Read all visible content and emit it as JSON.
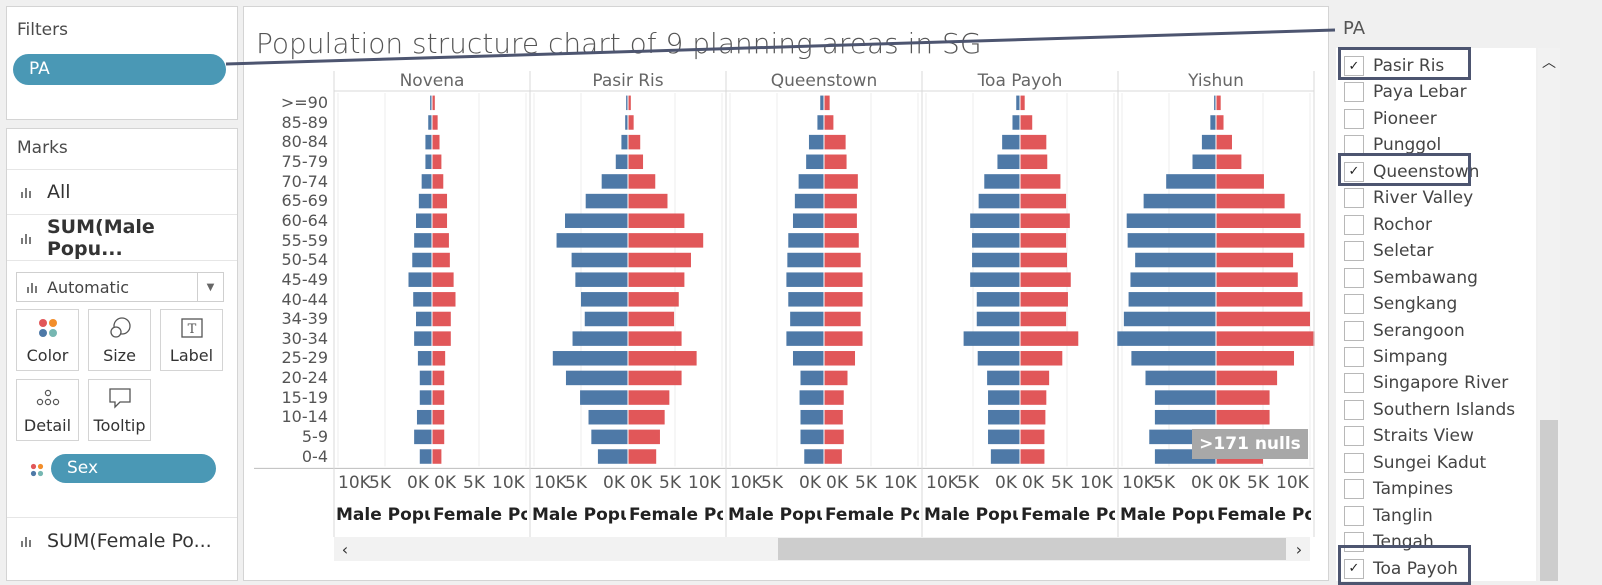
{
  "filters": {
    "title": "Filters",
    "pill": "PA"
  },
  "marks": {
    "title": "Marks",
    "rows": [
      "All",
      "SUM(Male Popu...",
      "SUM(Female Po..."
    ],
    "mark_type": "Automatic",
    "buttons": [
      "Color",
      "Size",
      "Label",
      "Detail",
      "Tooltip"
    ],
    "sex_pill": "Sex"
  },
  "viz": {
    "title": "Population structure chart of 9 planning areas in SG",
    "nulls_indicator": ">171 nulls"
  },
  "chart_data": {
    "type": "bar",
    "title": "Population structure chart of 9 planning areas in SG",
    "panes": [
      "Novena",
      "Pasir Ris",
      "Queenstown",
      "Toa Payoh",
      "Yishun"
    ],
    "categories": [
      ">=90",
      "85-89",
      "80-84",
      "75-79",
      "70-74",
      "65-69",
      "60-64",
      "55-59",
      "50-54",
      "45-49",
      "40-44",
      "34-39",
      "30-34",
      "25-29",
      "20-24",
      "15-19",
      "10-14",
      "5-9",
      "0-4"
    ],
    "axis_ticks": [
      "10K",
      "5K",
      "0K",
      "0K",
      "5K",
      "10K"
    ],
    "male_axis_label": "Male Popu...",
    "female_axis_label": "Female Po...",
    "xlim": [
      -10000,
      10000
    ],
    "colors": {
      "male": "#4e79a7",
      "female": "#e15759"
    },
    "series": [
      {
        "name": "Male Population",
        "pane": "Novena",
        "values": [
          200,
          400,
          700,
          700,
          1100,
          1400,
          1700,
          1900,
          2100,
          2500,
          2000,
          1700,
          1900,
          1500,
          1300,
          1300,
          1600,
          1900,
          1300
        ]
      },
      {
        "name": "Female Population",
        "pane": "Novena",
        "values": [
          300,
          600,
          800,
          1000,
          1200,
          1600,
          1600,
          1800,
          1900,
          2300,
          2500,
          2000,
          2000,
          1400,
          1300,
          1300,
          1300,
          1300,
          1000
        ]
      },
      {
        "name": "Male Population",
        "pane": "Pasir Ris",
        "values": [
          200,
          300,
          700,
          1300,
          2800,
          4500,
          6700,
          7600,
          6000,
          5600,
          5000,
          4600,
          5900,
          8000,
          6600,
          5100,
          4200,
          3900,
          3200
        ]
      },
      {
        "name": "Female Population",
        "pane": "Pasir Ris",
        "values": [
          300,
          600,
          1300,
          1600,
          2900,
          4200,
          6000,
          8000,
          6700,
          6000,
          5400,
          4900,
          5700,
          7300,
          5700,
          4400,
          3900,
          3400,
          3000
        ]
      },
      {
        "name": "Male Population",
        "pane": "Queenstown",
        "values": [
          400,
          700,
          1600,
          1900,
          2700,
          3100,
          3300,
          3800,
          3900,
          4000,
          3800,
          3600,
          4000,
          3300,
          2500,
          2600,
          2500,
          2500,
          2100
        ]
      },
      {
        "name": "Female Population",
        "pane": "Queenstown",
        "values": [
          600,
          1000,
          2300,
          2400,
          3600,
          3500,
          3500,
          3700,
          3900,
          4100,
          4100,
          3900,
          4100,
          3300,
          2500,
          2100,
          2000,
          2100,
          1900
        ]
      },
      {
        "name": "Male Population",
        "pane": "Toa Payoh",
        "values": [
          400,
          800,
          1900,
          2400,
          3800,
          4400,
          5300,
          5100,
          5100,
          5300,
          4600,
          4600,
          6000,
          4500,
          3500,
          3400,
          3400,
          3400,
          3100
        ]
      },
      {
        "name": "Female Population",
        "pane": "Toa Payoh",
        "values": [
          500,
          1300,
          2800,
          2900,
          4300,
          4900,
          5300,
          4900,
          5000,
          5400,
          5100,
          4900,
          6200,
          4500,
          3100,
          2800,
          2700,
          2600,
          2600
        ]
      },
      {
        "name": "Male Population",
        "pane": "Yishun",
        "values": [
          200,
          600,
          1500,
          2500,
          5300,
          7700,
          9500,
          9400,
          8600,
          9100,
          9300,
          9800,
          10500,
          9000,
          7500,
          6500,
          6500,
          7100,
          6500
        ]
      },
      {
        "name": "Female Population",
        "pane": "Yishun",
        "values": [
          500,
          800,
          1700,
          2700,
          5100,
          7300,
          9000,
          9400,
          8200,
          8700,
          9200,
          10000,
          10500,
          8300,
          6500,
          5700,
          5700,
          5900,
          5000
        ]
      }
    ]
  },
  "pa_filter": {
    "title": "PA",
    "items": [
      {
        "label": "Pasir Ris",
        "checked": true
      },
      {
        "label": "Paya Lebar",
        "checked": false
      },
      {
        "label": "Pioneer",
        "checked": false
      },
      {
        "label": "Punggol",
        "checked": false
      },
      {
        "label": "Queenstown",
        "checked": true
      },
      {
        "label": "River Valley",
        "checked": false
      },
      {
        "label": "Rochor",
        "checked": false
      },
      {
        "label": "Seletar",
        "checked": false
      },
      {
        "label": "Sembawang",
        "checked": false
      },
      {
        "label": "Sengkang",
        "checked": false
      },
      {
        "label": "Serangoon",
        "checked": false
      },
      {
        "label": "Simpang",
        "checked": false
      },
      {
        "label": "Singapore River",
        "checked": false
      },
      {
        "label": "Southern Islands",
        "checked": false
      },
      {
        "label": "Straits View",
        "checked": false
      },
      {
        "label": "Sungei Kadut",
        "checked": false
      },
      {
        "label": "Tampines",
        "checked": false
      },
      {
        "label": "Tanglin",
        "checked": false
      },
      {
        "label": "Tengah",
        "checked": false
      },
      {
        "label": "Toa Payoh",
        "checked": true
      }
    ]
  }
}
